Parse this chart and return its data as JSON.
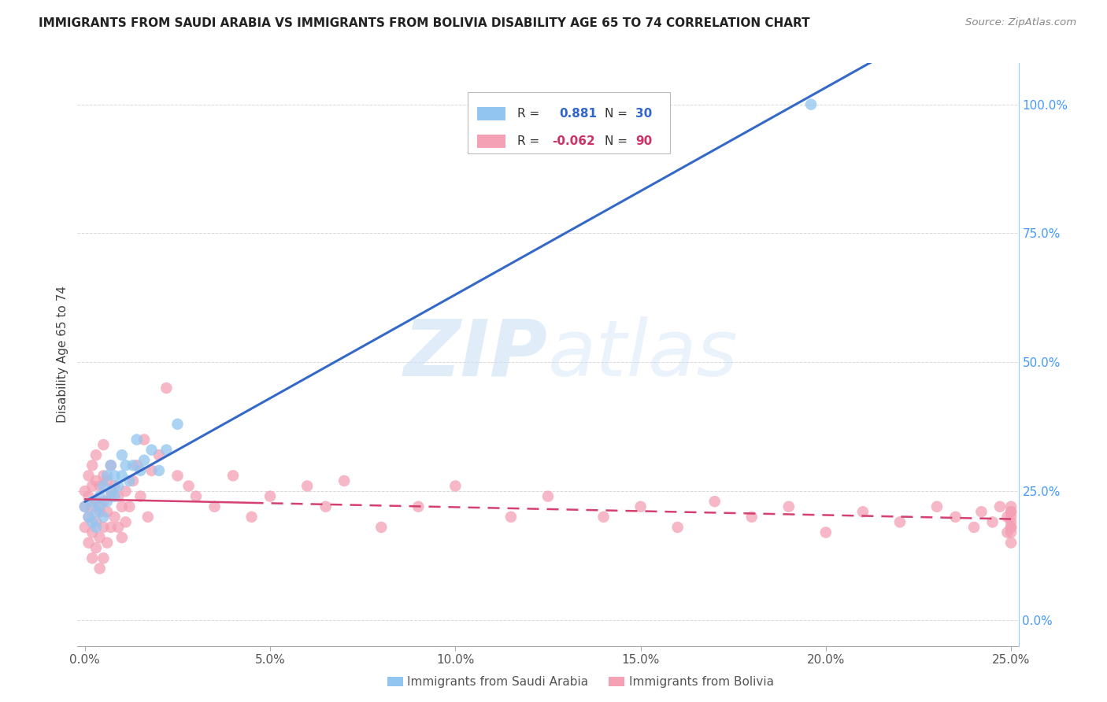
{
  "title": "IMMIGRANTS FROM SAUDI ARABIA VS IMMIGRANTS FROM BOLIVIA DISABILITY AGE 65 TO 74 CORRELATION CHART",
  "source": "Source: ZipAtlas.com",
  "ylabel_label": "Disability Age 65 to 74",
  "xlim": [
    0.0,
    0.25
  ],
  "ylim": [
    -0.05,
    1.05
  ],
  "plot_ylim": [
    0.0,
    1.0
  ],
  "xtick_vals": [
    0.0,
    0.05,
    0.1,
    0.15,
    0.2,
    0.25
  ],
  "xtick_labels": [
    "0.0%",
    "5.0%",
    "10.0%",
    "15.0%",
    "20.0%",
    "25.0%"
  ],
  "ytick_vals": [
    0.0,
    0.25,
    0.5,
    0.75,
    1.0
  ],
  "ytick_labels": [
    "0.0%",
    "25.0%",
    "50.0%",
    "75.0%",
    "100.0%"
  ],
  "saudi_color": "#92C5F0",
  "bolivia_color": "#F4A0B5",
  "saudi_R": 0.881,
  "saudi_N": 30,
  "bolivia_R": -0.062,
  "bolivia_N": 90,
  "watermark_zip": "ZIP",
  "watermark_atlas": "atlas",
  "background_color": "#ffffff",
  "grid_color": "#d0d0d0",
  "saudi_line_color": "#3569C8",
  "bolivia_line_color": "#D44070",
  "saudi_points_x": [
    0.0,
    0.001,
    0.002,
    0.002,
    0.003,
    0.003,
    0.004,
    0.004,
    0.005,
    0.005,
    0.006,
    0.006,
    0.007,
    0.007,
    0.008,
    0.008,
    0.009,
    0.01,
    0.01,
    0.011,
    0.012,
    0.013,
    0.014,
    0.015,
    0.016,
    0.018,
    0.02,
    0.022,
    0.025,
    0.196
  ],
  "saudi_points_y": [
    0.22,
    0.2,
    0.19,
    0.23,
    0.21,
    0.18,
    0.24,
    0.22,
    0.26,
    0.2,
    0.28,
    0.23,
    0.25,
    0.3,
    0.28,
    0.24,
    0.26,
    0.28,
    0.32,
    0.3,
    0.27,
    0.3,
    0.35,
    0.29,
    0.31,
    0.33,
    0.29,
    0.33,
    0.38,
    1.0
  ],
  "bolivia_points_x": [
    0.0,
    0.0,
    0.0,
    0.001,
    0.001,
    0.001,
    0.001,
    0.002,
    0.002,
    0.002,
    0.002,
    0.002,
    0.003,
    0.003,
    0.003,
    0.003,
    0.003,
    0.004,
    0.004,
    0.004,
    0.004,
    0.005,
    0.005,
    0.005,
    0.005,
    0.005,
    0.006,
    0.006,
    0.006,
    0.007,
    0.007,
    0.007,
    0.008,
    0.008,
    0.009,
    0.009,
    0.01,
    0.01,
    0.011,
    0.011,
    0.012,
    0.013,
    0.014,
    0.015,
    0.016,
    0.017,
    0.018,
    0.02,
    0.022,
    0.025,
    0.028,
    0.03,
    0.035,
    0.04,
    0.045,
    0.05,
    0.06,
    0.065,
    0.07,
    0.08,
    0.09,
    0.1,
    0.115,
    0.125,
    0.14,
    0.15,
    0.16,
    0.17,
    0.18,
    0.19,
    0.2,
    0.21,
    0.22,
    0.23,
    0.235,
    0.24,
    0.242,
    0.245,
    0.247,
    0.249,
    0.249,
    0.25,
    0.25,
    0.25,
    0.25,
    0.25,
    0.25,
    0.25,
    0.25,
    0.25
  ],
  "bolivia_points_y": [
    0.18,
    0.22,
    0.25,
    0.15,
    0.2,
    0.24,
    0.28,
    0.12,
    0.17,
    0.22,
    0.26,
    0.3,
    0.14,
    0.19,
    0.23,
    0.27,
    0.32,
    0.1,
    0.16,
    0.21,
    0.26,
    0.12,
    0.18,
    0.23,
    0.28,
    0.34,
    0.15,
    0.21,
    0.27,
    0.18,
    0.24,
    0.3,
    0.2,
    0.26,
    0.18,
    0.24,
    0.16,
    0.22,
    0.19,
    0.25,
    0.22,
    0.27,
    0.3,
    0.24,
    0.35,
    0.2,
    0.29,
    0.32,
    0.45,
    0.28,
    0.26,
    0.24,
    0.22,
    0.28,
    0.2,
    0.24,
    0.26,
    0.22,
    0.27,
    0.18,
    0.22,
    0.26,
    0.2,
    0.24,
    0.2,
    0.22,
    0.18,
    0.23,
    0.2,
    0.22,
    0.17,
    0.21,
    0.19,
    0.22,
    0.2,
    0.18,
    0.21,
    0.19,
    0.22,
    0.17,
    0.2,
    0.18,
    0.21,
    0.19,
    0.22,
    0.17,
    0.2,
    0.18,
    0.21,
    0.15
  ]
}
